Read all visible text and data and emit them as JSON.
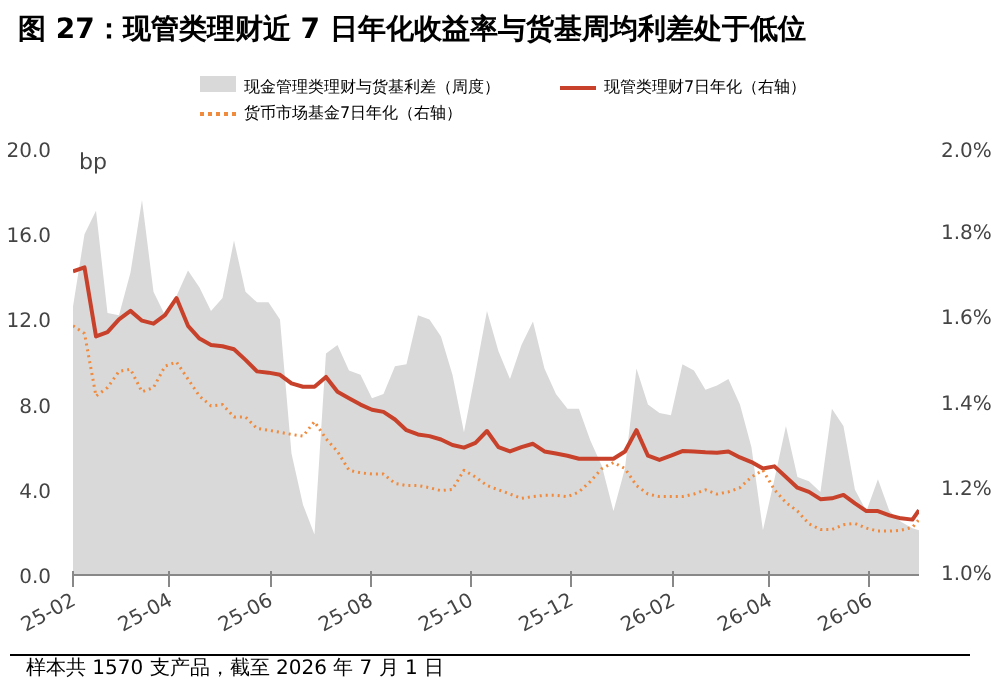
{
  "chart_data": {
    "type": "line",
    "title": "图 27：现管类理财近 7 日年化收益率与货基周均利差处于低位",
    "ylabel": "bp",
    "annotations": [
      "样本共 1570 支产品，截至 2026 年 7 月 1 日"
    ],
    "x": [
      "2025-02-01",
      "2025-02-08",
      "2025-02-15",
      "2025-02-22",
      "2025-03-01",
      "2025-03-08",
      "2025-03-15",
      "2025-03-22",
      "2025-03-29",
      "2025-04-05",
      "2025-04-12",
      "2025-04-19",
      "2025-04-26",
      "2025-05-03",
      "2025-05-10",
      "2025-05-17",
      "2025-05-24",
      "2025-05-31",
      "2025-06-07",
      "2025-06-14",
      "2025-06-21",
      "2025-06-28",
      "2025-07-05",
      "2025-07-12",
      "2025-07-19",
      "2025-07-26",
      "2025-08-02",
      "2025-08-09",
      "2025-08-16",
      "2025-08-23",
      "2025-08-30",
      "2025-09-06",
      "2025-09-13",
      "2025-09-20",
      "2025-09-27",
      "2025-10-04",
      "2025-10-11",
      "2025-10-18",
      "2025-10-25",
      "2025-11-01",
      "2025-11-08",
      "2025-11-15",
      "2025-11-22",
      "2025-11-29",
      "2025-12-06",
      "2025-12-13",
      "2025-12-20",
      "2025-12-27",
      "2026-01-03",
      "2026-01-10",
      "2026-01-17",
      "2026-01-24",
      "2026-01-31",
      "2026-02-07",
      "2026-02-14",
      "2026-02-21",
      "2026-02-28",
      "2026-03-07",
      "2026-03-14",
      "2026-03-21",
      "2026-03-28",
      "2026-04-04",
      "2026-04-11",
      "2026-04-18",
      "2026-04-25",
      "2026-05-02",
      "2026-05-09",
      "2026-05-16",
      "2026-05-23",
      "2026-05-30",
      "2026-06-06",
      "2026-06-13",
      "2026-06-20",
      "2026-06-27",
      "2026-07-01"
    ],
    "series": [
      {
        "name": "现金管理类理财与货基利差（周度）",
        "type": "area",
        "color": "#d9d9d9",
        "values": [
          12.6,
          16.0,
          17.1,
          12.3,
          12.2,
          14.2,
          17.6,
          13.3,
          12.2,
          13.1,
          14.3,
          13.5,
          12.4,
          13.0,
          15.7,
          13.3,
          12.8,
          12.8,
          12.0,
          5.7,
          3.3,
          1.9,
          10.4,
          10.8,
          9.6,
          9.4,
          8.3,
          8.5,
          9.8,
          9.9,
          12.2,
          12.0,
          11.2,
          9.4,
          6.7,
          9.5,
          12.4,
          10.5,
          9.2,
          10.8,
          11.9,
          9.7,
          8.5,
          7.8,
          7.8,
          6.3,
          5.1,
          3.0,
          5.0,
          9.7,
          8.0,
          7.6,
          7.5,
          9.9,
          9.6,
          8.7,
          8.9,
          9.2,
          8.0,
          6.0,
          2.1,
          4.5,
          7.0,
          4.6,
          4.4,
          3.9,
          7.8,
          7.0,
          4.0,
          3.0,
          4.5,
          3.0,
          2.5,
          2.2,
          2.1
        ]
      },
      {
        "name": "现管类理财7日年化（右轴）",
        "axis": "y2",
        "color": "#c8412a",
        "line_style": "solid",
        "values": [
          1.713,
          1.722,
          1.56,
          1.57,
          1.6,
          1.62,
          1.597,
          1.59,
          1.61,
          1.65,
          1.585,
          1.555,
          1.54,
          1.537,
          1.53,
          1.505,
          1.478,
          1.475,
          1.47,
          1.45,
          1.442,
          1.442,
          1.465,
          1.43,
          1.415,
          1.4,
          1.388,
          1.383,
          1.365,
          1.34,
          1.33,
          1.326,
          1.318,
          1.305,
          1.299,
          1.31,
          1.338,
          1.3,
          1.29,
          1.3,
          1.308,
          1.29,
          1.285,
          1.28,
          1.273,
          1.273,
          1.273,
          1.273,
          1.29,
          1.34,
          1.28,
          1.27,
          1.28,
          1.291,
          1.29,
          1.288,
          1.287,
          1.29,
          1.276,
          1.265,
          1.25,
          1.255,
          1.23,
          1.205,
          1.195,
          1.178,
          1.18,
          1.188,
          1.168,
          1.15,
          1.15,
          1.14,
          1.133,
          1.13,
          1.152
        ]
      },
      {
        "name": "货币市场基金7日年化（右轴）",
        "axis": "y2",
        "color": "#f08a3c",
        "line_style": "dotted",
        "values": [
          1.585,
          1.567,
          1.42,
          1.44,
          1.478,
          1.483,
          1.43,
          1.44,
          1.49,
          1.5,
          1.46,
          1.42,
          1.397,
          1.4,
          1.371,
          1.371,
          1.344,
          1.34,
          1.335,
          1.33,
          1.326,
          1.36,
          1.32,
          1.29,
          1.246,
          1.24,
          1.237,
          1.237,
          1.215,
          1.21,
          1.21,
          1.205,
          1.198,
          1.201,
          1.246,
          1.23,
          1.21,
          1.2,
          1.19,
          1.18,
          1.184,
          1.187,
          1.187,
          1.184,
          1.195,
          1.22,
          1.25,
          1.264,
          1.25,
          1.21,
          1.19,
          1.184,
          1.184,
          1.184,
          1.19,
          1.2,
          1.19,
          1.195,
          1.205,
          1.23,
          1.246,
          1.2,
          1.17,
          1.15,
          1.12,
          1.107,
          1.107,
          1.118,
          1.121,
          1.11,
          1.103,
          1.103,
          1.105,
          1.112,
          1.13
        ]
      }
    ],
    "xlim": [
      "2025-02-01",
      "2026-07-01"
    ],
    "xticks": [
      {
        "value": "2025-02-01",
        "label": "25-02"
      },
      {
        "value": "2025-04-01",
        "label": "25-04"
      },
      {
        "value": "2025-06-01",
        "label": "25-06"
      },
      {
        "value": "2025-08-01",
        "label": "25-08"
      },
      {
        "value": "2025-10-01",
        "label": "25-10"
      },
      {
        "value": "2025-12-01",
        "label": "25-12"
      },
      {
        "value": "2026-02-01",
        "label": "26-02"
      },
      {
        "value": "2026-04-01",
        "label": "26-04"
      },
      {
        "value": "2026-06-01",
        "label": "26-06"
      }
    ],
    "ylim": [
      0,
      20
    ],
    "yticks": [
      {
        "value": 0,
        "label": "0.0"
      },
      {
        "value": 4,
        "label": "4.0"
      },
      {
        "value": 8,
        "label": "8.0"
      },
      {
        "value": 12,
        "label": "12.0"
      },
      {
        "value": 16,
        "label": "16.0"
      },
      {
        "value": 20,
        "label": "20.0"
      }
    ],
    "y2lim": [
      1.0,
      2.0
    ],
    "y2ticks": [
      {
        "value": 1.0,
        "label": "1.0%"
      },
      {
        "value": 1.2,
        "label": "1.2%"
      },
      {
        "value": 1.4,
        "label": "1.4%"
      },
      {
        "value": 1.6,
        "label": "1.6%"
      },
      {
        "value": 1.8,
        "label": "1.8%"
      },
      {
        "value": 2.0,
        "label": "2.0%"
      }
    ],
    "grid": false,
    "legend": "top"
  }
}
